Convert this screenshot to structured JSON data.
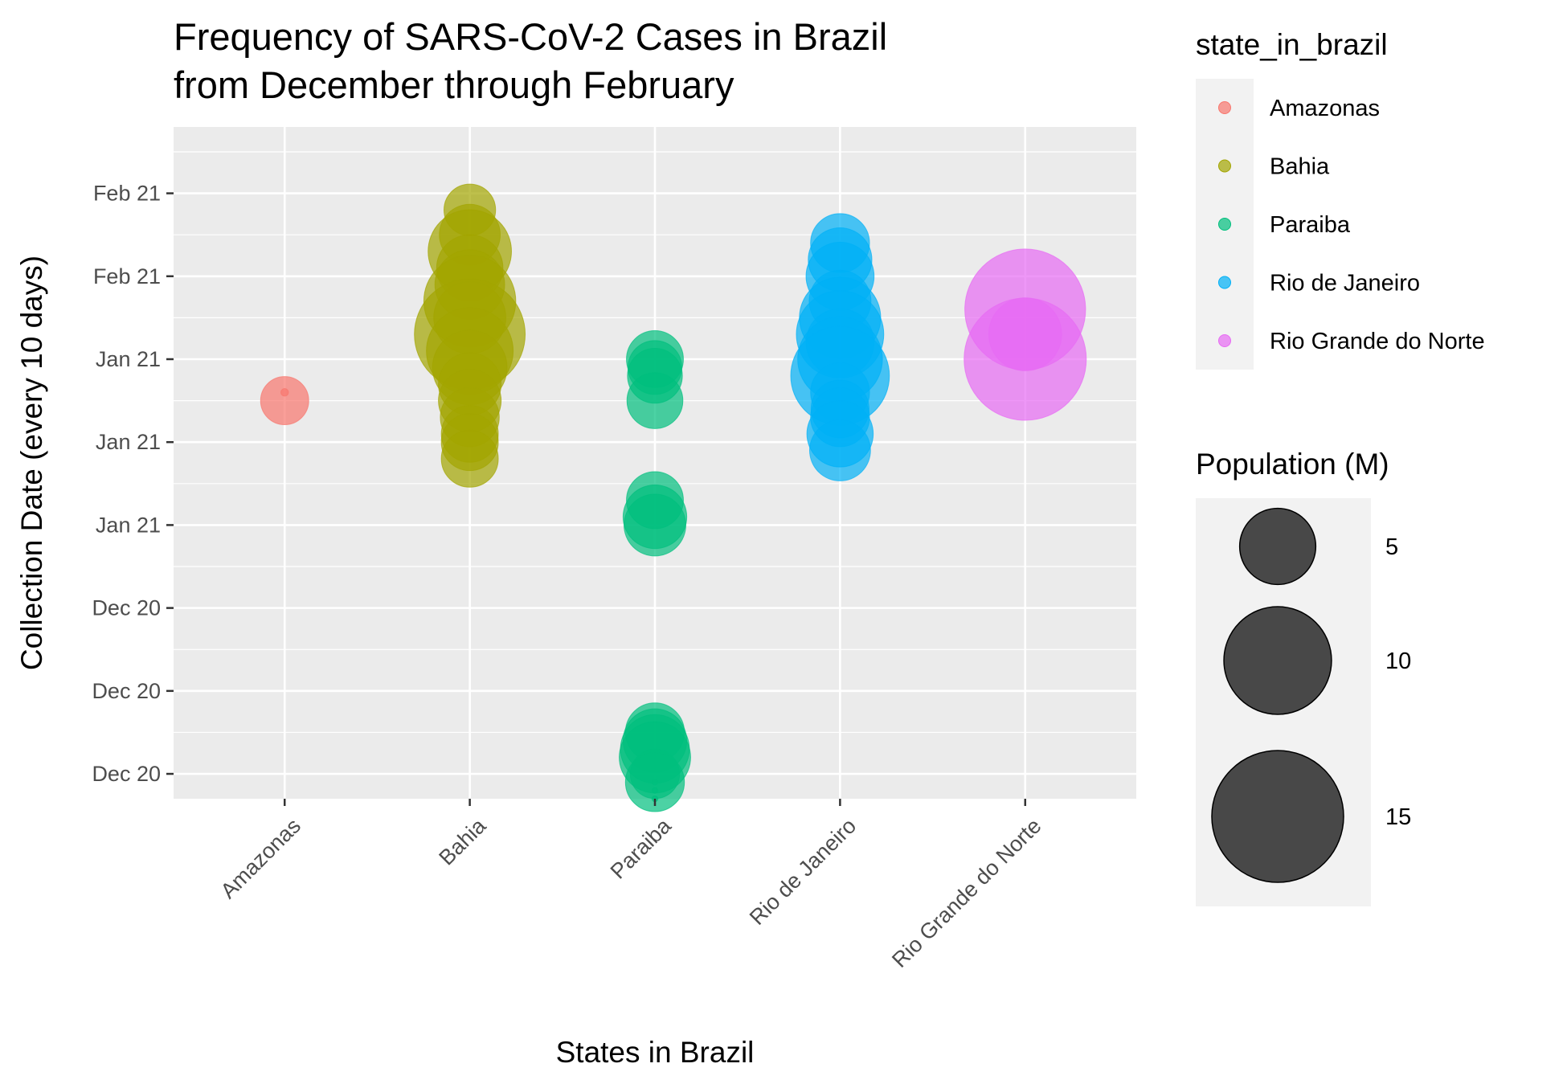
{
  "chart_data": {
    "type": "scatter",
    "title_lines": [
      "Frequency of SARS-CoV-2 Cases in Brazil",
      "from December through February"
    ],
    "xlabel": "States in Brazil",
    "ylabel": "Collection Date (every 10 days)",
    "categories": [
      "Amazonas",
      "Bahia",
      "Paraiba",
      "Rio de Janeiro",
      "Rio Grande do Norte"
    ],
    "y_axis": {
      "scale": "date",
      "range": [
        "2020-12-08",
        "2021-02-27"
      ],
      "major_ticks": [
        {
          "date": "2020-12-11",
          "label": "Dec 20"
        },
        {
          "date": "2020-12-21",
          "label": "Dec 20"
        },
        {
          "date": "2020-12-31",
          "label": "Dec 20"
        },
        {
          "date": "2021-01-10",
          "label": "Jan 21"
        },
        {
          "date": "2021-01-20",
          "label": "Jan 21"
        },
        {
          "date": "2021-01-30",
          "label": "Jan 21"
        },
        {
          "date": "2021-02-09",
          "label": "Feb 21"
        },
        {
          "date": "2021-02-19",
          "label": "Feb 21"
        }
      ],
      "minor_ticks": [
        "2020-12-06",
        "2020-12-16",
        "2020-12-26",
        "2021-01-05",
        "2021-01-15",
        "2021-01-25",
        "2021-02-04",
        "2021-02-14",
        "2021-02-24"
      ]
    },
    "grid": true,
    "legend_position": "right",
    "colors": {
      "Amazonas": "#F8766D",
      "Bahia": "#A3A500",
      "Paraiba": "#00BF7D",
      "Rio de Janeiro": "#00B0F6",
      "Rio Grande do Norte": "#E76BF3"
    },
    "color_legend": {
      "title": "state_in_brazil",
      "entries": [
        "Amazonas",
        "Bahia",
        "Paraiba",
        "Rio de Janeiro",
        "Rio Grande do Norte"
      ]
    },
    "size_legend": {
      "title": "Population (M)",
      "breaks": [
        5,
        10,
        15
      ]
    },
    "size_mapping": {
      "population_min": 0,
      "population_max": 15,
      "radius_max_px": 82
    },
    "point_alpha": 0.7,
    "series": [
      {
        "state": "Amazonas",
        "points": [
          {
            "date": "2021-01-26",
            "population": 0.05
          },
          {
            "date": "2021-01-25",
            "population": 2.0
          }
        ]
      },
      {
        "state": "Bahia",
        "points": [
          {
            "date": "2021-02-17",
            "population": 2.3
          },
          {
            "date": "2021-02-14",
            "population": 3.2
          },
          {
            "date": "2021-02-12",
            "population": 6.0
          },
          {
            "date": "2021-02-10",
            "population": 3.8
          },
          {
            "date": "2021-02-08",
            "population": 4.2
          },
          {
            "date": "2021-02-06",
            "population": 7.3
          },
          {
            "date": "2021-02-04",
            "population": 4.5
          },
          {
            "date": "2021-02-02",
            "population": 10.6
          },
          {
            "date": "2021-01-31",
            "population": 6.5
          },
          {
            "date": "2021-01-29",
            "population": 4.8
          },
          {
            "date": "2021-01-27",
            "population": 3.4
          },
          {
            "date": "2021-01-25",
            "population": 3.4
          },
          {
            "date": "2021-01-23",
            "population": 3.0
          },
          {
            "date": "2021-01-21",
            "population": 2.8
          },
          {
            "date": "2021-01-20",
            "population": 2.8
          },
          {
            "date": "2021-01-18",
            "population": 2.8
          }
        ]
      },
      {
        "state": "Paraiba",
        "points": [
          {
            "date": "2021-01-30",
            "population": 2.8
          },
          {
            "date": "2021-01-29",
            "population": 2.5
          },
          {
            "date": "2021-01-28",
            "population": 2.6
          },
          {
            "date": "2021-01-25",
            "population": 2.7
          },
          {
            "date": "2021-01-13",
            "population": 2.8
          },
          {
            "date": "2021-01-11",
            "population": 3.5
          },
          {
            "date": "2021-01-10",
            "population": 3.3
          },
          {
            "date": "2020-12-16",
            "population": 3.0
          },
          {
            "date": "2020-12-15",
            "population": 3.5
          },
          {
            "date": "2020-12-14",
            "population": 4.1
          },
          {
            "date": "2020-12-13",
            "population": 4.4
          },
          {
            "date": "2020-12-11",
            "population": 2.1
          },
          {
            "date": "2020-12-10",
            "population": 3.0
          },
          {
            "date": "2020-12-10",
            "population": 0.03
          },
          {
            "date": "2020-12-09",
            "population": 0.03
          },
          {
            "date": "2020-12-08",
            "population": 0.03
          }
        ]
      },
      {
        "state": "Rio de Janeiro",
        "points": [
          {
            "date": "2021-02-13",
            "population": 3.0
          },
          {
            "date": "2021-02-11",
            "population": 3.5
          },
          {
            "date": "2021-02-09",
            "population": 4.0
          },
          {
            "date": "2021-02-06",
            "population": 3.3
          },
          {
            "date": "2021-02-04",
            "population": 5.7
          },
          {
            "date": "2021-02-02",
            "population": 6.6
          },
          {
            "date": "2021-02-01",
            "population": 4.0
          },
          {
            "date": "2021-01-30",
            "population": 6.2
          },
          {
            "date": "2021-01-28",
            "population": 8.4
          },
          {
            "date": "2021-01-26",
            "population": 3.0
          },
          {
            "date": "2021-01-24",
            "population": 2.9
          },
          {
            "date": "2021-01-23",
            "population": 3.0
          },
          {
            "date": "2021-01-21",
            "population": 3.8
          },
          {
            "date": "2021-01-19",
            "population": 3.2
          }
        ]
      },
      {
        "state": "Rio Grande do Norte",
        "points": [
          {
            "date": "2021-02-05",
            "population": 12.6
          },
          {
            "date": "2021-02-02",
            "population": 4.6
          },
          {
            "date": "2021-01-30",
            "population": 12.9
          }
        ]
      }
    ]
  }
}
